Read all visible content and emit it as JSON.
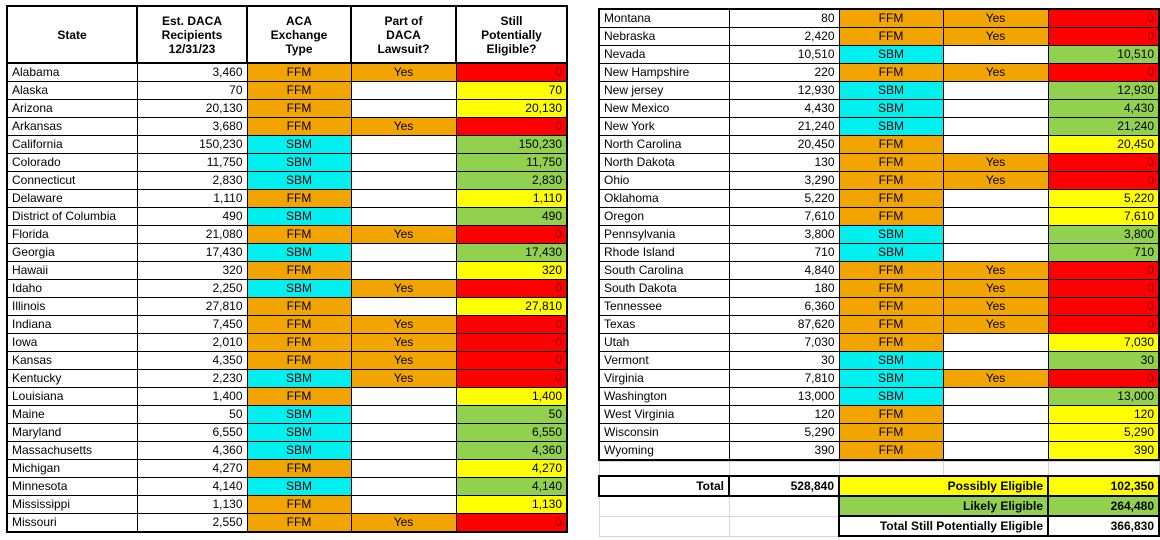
{
  "palette": {
    "orange": "#F2A500",
    "cyan": "#00F0F0",
    "yellow": "#FFFF00",
    "green": "#92D050",
    "red": "#FF0000",
    "redtext": "#8B0000",
    "grid": "#D6D6D6"
  },
  "chart_data": {
    "type": "table",
    "title": "",
    "header": {
      "state": "State",
      "recipients": "Est. DACA\nRecipients\n12/31/23",
      "exchange": "ACA\nExchange\nType",
      "lawsuit": "Part of\nDACA\nLawsuit?",
      "eligible": "Still\nPotentially\nEligible?"
    },
    "left_rows": [
      {
        "state": "Alabama",
        "recipients": "3,460",
        "exchange": "FFM",
        "lawsuit": "Yes",
        "eligible": "0"
      },
      {
        "state": "Alaska",
        "recipients": "70",
        "exchange": "FFM",
        "lawsuit": "",
        "eligible": "70"
      },
      {
        "state": "Arizona",
        "recipients": "20,130",
        "exchange": "FFM",
        "lawsuit": "",
        "eligible": "20,130"
      },
      {
        "state": "Arkansas",
        "recipients": "3,680",
        "exchange": "FFM",
        "lawsuit": "Yes",
        "eligible": "0"
      },
      {
        "state": "California",
        "recipients": "150,230",
        "exchange": "SBM",
        "lawsuit": "",
        "eligible": "150,230"
      },
      {
        "state": "Colorado",
        "recipients": "11,750",
        "exchange": "SBM",
        "lawsuit": "",
        "eligible": "11,750"
      },
      {
        "state": "Connecticut",
        "recipients": "2,830",
        "exchange": "SBM",
        "lawsuit": "",
        "eligible": "2,830"
      },
      {
        "state": "Delaware",
        "recipients": "1,110",
        "exchange": "FFM",
        "lawsuit": "",
        "eligible": "1,110"
      },
      {
        "state": "District of Columbia",
        "recipients": "490",
        "exchange": "SBM",
        "lawsuit": "",
        "eligible": "490"
      },
      {
        "state": "Florida",
        "recipients": "21,080",
        "exchange": "FFM",
        "lawsuit": "Yes",
        "eligible": "0"
      },
      {
        "state": "Georgia",
        "recipients": "17,430",
        "exchange": "SBM",
        "lawsuit": "",
        "eligible": "17,430"
      },
      {
        "state": "Hawaii",
        "recipients": "320",
        "exchange": "FFM",
        "lawsuit": "",
        "eligible": "320"
      },
      {
        "state": "Idaho",
        "recipients": "2,250",
        "exchange": "SBM",
        "lawsuit": "Yes",
        "eligible": "0"
      },
      {
        "state": "Illinois",
        "recipients": "27,810",
        "exchange": "FFM",
        "lawsuit": "",
        "eligible": "27,810"
      },
      {
        "state": "Indiana",
        "recipients": "7,450",
        "exchange": "FFM",
        "lawsuit": "Yes",
        "eligible": "0"
      },
      {
        "state": "Iowa",
        "recipients": "2,010",
        "exchange": "FFM",
        "lawsuit": "Yes",
        "eligible": "0"
      },
      {
        "state": "Kansas",
        "recipients": "4,350",
        "exchange": "FFM",
        "lawsuit": "Yes",
        "eligible": "0"
      },
      {
        "state": "Kentucky",
        "recipients": "2,230",
        "exchange": "SBM",
        "lawsuit": "Yes",
        "eligible": "0"
      },
      {
        "state": "Louisiana",
        "recipients": "1,400",
        "exchange": "FFM",
        "lawsuit": "",
        "eligible": "1,400"
      },
      {
        "state": "Maine",
        "recipients": "50",
        "exchange": "SBM",
        "lawsuit": "",
        "eligible": "50"
      },
      {
        "state": "Maryland",
        "recipients": "6,550",
        "exchange": "SBM",
        "lawsuit": "",
        "eligible": "6,550"
      },
      {
        "state": "Massachusetts",
        "recipients": "4,360",
        "exchange": "SBM",
        "lawsuit": "",
        "eligible": "4,360"
      },
      {
        "state": "Michigan",
        "recipients": "4,270",
        "exchange": "FFM",
        "lawsuit": "",
        "eligible": "4,270"
      },
      {
        "state": "Minnesota",
        "recipients": "4,140",
        "exchange": "SBM",
        "lawsuit": "",
        "eligible": "4,140"
      },
      {
        "state": "Mississippi",
        "recipients": "1,130",
        "exchange": "FFM",
        "lawsuit": "",
        "eligible": "1,130"
      },
      {
        "state": "Missouri",
        "recipients": "2,550",
        "exchange": "FFM",
        "lawsuit": "Yes",
        "eligible": "0"
      }
    ],
    "right_rows": [
      {
        "state": "Montana",
        "recipients": "80",
        "exchange": "FFM",
        "lawsuit": "Yes",
        "eligible": "0"
      },
      {
        "state": "Nebraska",
        "recipients": "2,420",
        "exchange": "FFM",
        "lawsuit": "Yes",
        "eligible": "0"
      },
      {
        "state": "Nevada",
        "recipients": "10,510",
        "exchange": "SBM",
        "lawsuit": "",
        "eligible": "10,510"
      },
      {
        "state": "New Hampshire",
        "recipients": "220",
        "exchange": "FFM",
        "lawsuit": "Yes",
        "eligible": "0"
      },
      {
        "state": "New jersey",
        "recipients": "12,930",
        "exchange": "SBM",
        "lawsuit": "",
        "eligible": "12,930"
      },
      {
        "state": "New Mexico",
        "recipients": "4,430",
        "exchange": "SBM",
        "lawsuit": "",
        "eligible": "4,430"
      },
      {
        "state": "New York",
        "recipients": "21,240",
        "exchange": "SBM",
        "lawsuit": "",
        "eligible": "21,240"
      },
      {
        "state": "North Carolina",
        "recipients": "20,450",
        "exchange": "FFM",
        "lawsuit": "",
        "eligible": "20,450"
      },
      {
        "state": "North Dakota",
        "recipients": "130",
        "exchange": "FFM",
        "lawsuit": "Yes",
        "eligible": "0"
      },
      {
        "state": "Ohio",
        "recipients": "3,290",
        "exchange": "FFM",
        "lawsuit": "Yes",
        "eligible": "0"
      },
      {
        "state": "Oklahoma",
        "recipients": "5,220",
        "exchange": "FFM",
        "lawsuit": "",
        "eligible": "5,220"
      },
      {
        "state": "Oregon",
        "recipients": "7,610",
        "exchange": "FFM",
        "lawsuit": "",
        "eligible": "7,610"
      },
      {
        "state": "Pennsylvania",
        "recipients": "3,800",
        "exchange": "SBM",
        "lawsuit": "",
        "eligible": "3,800"
      },
      {
        "state": "Rhode Island",
        "recipients": "710",
        "exchange": "SBM",
        "lawsuit": "",
        "eligible": "710"
      },
      {
        "state": "South Carolina",
        "recipients": "4,840",
        "exchange": "FFM",
        "lawsuit": "Yes",
        "eligible": "0"
      },
      {
        "state": "South Dakota",
        "recipients": "180",
        "exchange": "FFM",
        "lawsuit": "Yes",
        "eligible": "0"
      },
      {
        "state": "Tennessee",
        "recipients": "6,360",
        "exchange": "FFM",
        "lawsuit": "Yes",
        "eligible": "0"
      },
      {
        "state": "Texas",
        "recipients": "87,620",
        "exchange": "FFM",
        "lawsuit": "Yes",
        "eligible": "0"
      },
      {
        "state": "Utah",
        "recipients": "7,030",
        "exchange": "FFM",
        "lawsuit": "",
        "eligible": "7,030"
      },
      {
        "state": "Vermont",
        "recipients": "30",
        "exchange": "SBM",
        "lawsuit": "",
        "eligible": "30"
      },
      {
        "state": "Virginia",
        "recipients": "7,810",
        "exchange": "SBM",
        "lawsuit": "Yes",
        "eligible": "0"
      },
      {
        "state": "Washington",
        "recipients": "13,000",
        "exchange": "SBM",
        "lawsuit": "",
        "eligible": "13,000"
      },
      {
        "state": "West Virginia",
        "recipients": "120",
        "exchange": "FFM",
        "lawsuit": "",
        "eligible": "120"
      },
      {
        "state": "Wisconsin",
        "recipients": "5,290",
        "exchange": "FFM",
        "lawsuit": "",
        "eligible": "5,290"
      },
      {
        "state": "Wyoming",
        "recipients": "390",
        "exchange": "FFM",
        "lawsuit": "",
        "eligible": "390"
      }
    ],
    "summary": {
      "total_label": "Total",
      "total_value": "528,840",
      "possibly_label": "Possibly Eligible",
      "possibly_value": "102,350",
      "likely_label": "Likely Eligible",
      "likely_value": "264,480",
      "total_still_label": "Total Still Potentially Eligible",
      "total_still_value": "366,830"
    },
    "exchange_types": [
      "FFM",
      "SBM"
    ],
    "lawsuit_values": [
      "Yes",
      ""
    ]
  }
}
